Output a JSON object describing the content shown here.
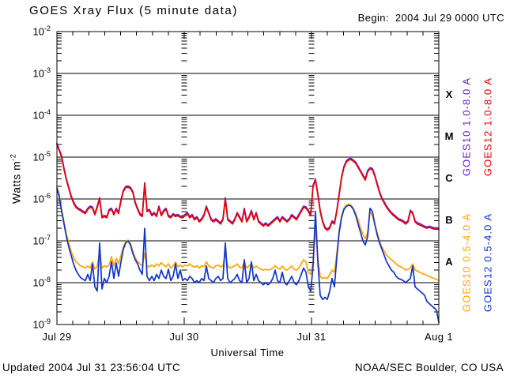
{
  "window": {
    "title": "GOES Xray Flux (5 minute data)",
    "begin_label": "Begin:  2004 Jul 29 0000 UTC"
  },
  "footer": {
    "updated": "Updated 2004 Jul 31 23:56:04 UTC",
    "source": "NOAA/SEC Boulder, CO USA"
  },
  "colors": {
    "background": "#ffffff",
    "frame": "#000000",
    "goes10_long": "#6a1fc8",
    "goes12_long": "#ea0000",
    "goes10_short": "#ffa500",
    "goes12_short": "#1133cc"
  },
  "chart_data": {
    "type": "line",
    "title": "GOES Xray Flux (5 minute data)",
    "xlabel": "Universal Time",
    "ylabel": {
      "base": "Watts m",
      "exponent": "-2"
    },
    "x_unit": "days since 2004 Jul 29 0000 UTC",
    "x_range_days": [
      0,
      3
    ],
    "x_tick_labels": [
      "Jul 29",
      "Jul 30",
      "Jul 31",
      "Aug 1"
    ],
    "x_minor_ticks_per_day": 8,
    "y_scale": "log",
    "y_log_range": [
      -2,
      -9
    ],
    "y_tick_exponents": [
      -2,
      -3,
      -4,
      -5,
      -6,
      -7,
      -8,
      -9
    ],
    "grid": "horizontal decade lines, log minor ticks at frame edges and day boundaries",
    "legend_position": "right margin, rotated",
    "flux_classes": [
      {
        "label": "X",
        "log10_center": -3.5
      },
      {
        "label": "M",
        "log10_center": -4.5
      },
      {
        "label": "C",
        "log10_center": -5.5
      },
      {
        "label": "B",
        "log10_center": -6.5
      },
      {
        "label": "A",
        "log10_center": -7.5
      }
    ],
    "series": [
      {
        "id": "goes10_long",
        "name": "GOES10 1.0-8.0 A",
        "color": "#6a1fc8",
        "derived_from": "goes12_long",
        "offset_log10": 0.03
      },
      {
        "id": "goes12_long",
        "name": "GOES12 1.0-8.0 A",
        "color": "#ea0000",
        "log10_flux": [
          -4.7,
          -4.85,
          -5.0,
          -5.3,
          -5.55,
          -5.75,
          -5.95,
          -6.1,
          -6.2,
          -6.25,
          -6.28,
          -6.32,
          -6.35,
          -6.25,
          -6.2,
          -6.22,
          -6.38,
          -6.2,
          -6.0,
          -6.45,
          -6.42,
          -6.45,
          -6.28,
          -6.25,
          -6.38,
          -6.25,
          -6.35,
          -6.05,
          -5.82,
          -5.73,
          -5.72,
          -5.75,
          -5.85,
          -6.1,
          -6.25,
          -6.38,
          -6.42,
          -5.64,
          -6.3,
          -6.28,
          -6.4,
          -6.35,
          -6.42,
          -6.2,
          -6.4,
          -6.3,
          -6.25,
          -6.42,
          -6.45,
          -6.38,
          -6.42,
          -6.4,
          -6.44,
          -6.45,
          -6.4,
          -6.35,
          -6.45,
          -6.4,
          -6.5,
          -6.45,
          -6.55,
          -6.5,
          -6.4,
          -6.2,
          -6.35,
          -6.5,
          -6.55,
          -6.5,
          -6.55,
          -6.6,
          -6.5,
          -6.0,
          -6.5,
          -6.55,
          -6.6,
          -6.5,
          -6.35,
          -6.45,
          -6.55,
          -6.25,
          -6.55,
          -6.45,
          -6.3,
          -6.5,
          -6.35,
          -6.55,
          -6.6,
          -6.65,
          -6.6,
          -6.65,
          -6.6,
          -6.55,
          -6.5,
          -6.45,
          -6.55,
          -6.45,
          -6.5,
          -6.55,
          -6.5,
          -6.4,
          -6.45,
          -6.5,
          -6.4,
          -6.3,
          -6.2,
          -6.22,
          -6.3,
          -6.4,
          -5.7,
          -5.55,
          -5.9,
          -6.3,
          -6.55,
          -6.7,
          -6.75,
          -6.7,
          -6.55,
          -6.6,
          -6.3,
          -5.9,
          -5.5,
          -5.25,
          -5.12,
          -5.07,
          -5.06,
          -5.1,
          -5.15,
          -5.25,
          -5.35,
          -5.45,
          -5.55,
          -5.35,
          -5.28,
          -5.3,
          -5.45,
          -5.65,
          -5.85,
          -6.0,
          -6.1,
          -6.2,
          -6.28,
          -6.35,
          -6.4,
          -6.45,
          -6.5,
          -6.52,
          -6.55,
          -6.6,
          -6.55,
          -6.3,
          -6.35,
          -6.55,
          -6.6,
          -6.62,
          -6.65,
          -6.68,
          -6.7,
          -6.68,
          -6.7,
          -6.72,
          -6.72,
          -6.73
        ]
      },
      {
        "id": "goes10_short",
        "name": "GOES10 0.5-4.0 A",
        "color": "#ffa500",
        "log10_flux": [
          -5.7,
          -5.9,
          -6.25,
          -6.55,
          -6.85,
          -7.05,
          -7.25,
          -7.4,
          -7.5,
          -7.55,
          -7.6,
          -7.62,
          -7.65,
          -7.6,
          -7.65,
          -7.5,
          -7.68,
          -7.6,
          -7.25,
          -7.65,
          -7.6,
          -7.62,
          -7.58,
          -7.38,
          -7.6,
          -7.42,
          -7.55,
          -7.35,
          -7.15,
          -7.02,
          -6.98,
          -7.06,
          -7.25,
          -7.4,
          -7.5,
          -7.55,
          -7.6,
          -7.3,
          -7.6,
          -7.62,
          -7.58,
          -7.62,
          -7.55,
          -7.6,
          -7.52,
          -7.58,
          -7.62,
          -7.55,
          -7.65,
          -7.6,
          -7.5,
          -7.62,
          -7.58,
          -7.62,
          -7.58,
          -7.6,
          -7.55,
          -7.6,
          -7.63,
          -7.6,
          -7.65,
          -7.6,
          -7.62,
          -7.5,
          -7.6,
          -7.63,
          -7.65,
          -7.6,
          -7.58,
          -7.62,
          -7.6,
          -7.3,
          -7.6,
          -7.65,
          -7.62,
          -7.6,
          -7.55,
          -7.63,
          -7.65,
          -7.5,
          -7.65,
          -7.6,
          -7.55,
          -7.65,
          -7.6,
          -7.65,
          -7.68,
          -7.7,
          -7.68,
          -7.7,
          -7.68,
          -7.65,
          -7.6,
          -7.65,
          -7.68,
          -7.6,
          -7.68,
          -7.7,
          -7.65,
          -7.6,
          -7.68,
          -7.7,
          -7.65,
          -7.55,
          -7.45,
          -7.5,
          -7.75,
          -7.8,
          -7.5,
          -6.7,
          -7.4,
          -7.85,
          -7.9,
          -7.88,
          -7.9,
          -7.8,
          -7.7,
          -7.75,
          -7.3,
          -6.75,
          -6.4,
          -6.22,
          -6.15,
          -6.12,
          -6.15,
          -6.22,
          -6.35,
          -6.5,
          -6.7,
          -6.85,
          -6.95,
          -6.8,
          -6.3,
          -6.4,
          -6.6,
          -6.8,
          -7.0,
          -7.15,
          -7.25,
          -7.35,
          -7.4,
          -7.45,
          -7.5,
          -7.55,
          -7.6,
          -7.62,
          -7.65,
          -7.7,
          -7.68,
          -7.65,
          -7.55,
          -7.7,
          -7.72,
          -7.75,
          -7.78,
          -7.8,
          -7.82,
          -7.85,
          -7.88,
          -7.9,
          -7.92,
          -7.95
        ]
      },
      {
        "id": "goes12_short",
        "name": "GOES12 0.5-4.0 A",
        "color": "#1133cc",
        "log10_flux": [
          -5.75,
          -5.95,
          -6.3,
          -6.6,
          -6.9,
          -7.15,
          -7.35,
          -7.55,
          -7.7,
          -7.8,
          -7.88,
          -7.92,
          -7.95,
          -7.8,
          -7.95,
          -7.55,
          -8.1,
          -8.2,
          -7.05,
          -8.15,
          -7.9,
          -8.0,
          -7.85,
          -7.5,
          -7.9,
          -7.53,
          -7.85,
          -7.5,
          -7.2,
          -7.05,
          -7.0,
          -7.1,
          -7.3,
          -7.45,
          -7.55,
          -7.7,
          -7.8,
          -6.7,
          -7.85,
          -7.95,
          -7.85,
          -7.95,
          -7.8,
          -7.9,
          -7.7,
          -7.85,
          -7.9,
          -7.68,
          -7.95,
          -7.85,
          -7.55,
          -7.9,
          -7.7,
          -7.95,
          -7.9,
          -7.95,
          -7.85,
          -7.9,
          -8.0,
          -7.95,
          -8.0,
          -7.9,
          -7.95,
          -7.6,
          -7.9,
          -7.95,
          -8.0,
          -7.9,
          -7.85,
          -7.95,
          -7.9,
          -7.05,
          -7.9,
          -8.0,
          -7.95,
          -7.9,
          -7.8,
          -7.95,
          -8.0,
          -7.45,
          -8.0,
          -7.9,
          -7.5,
          -7.95,
          -7.8,
          -7.95,
          -8.0,
          -8.05,
          -8.0,
          -8.05,
          -8.0,
          -7.9,
          -7.7,
          -7.95,
          -8.0,
          -7.75,
          -8.0,
          -8.05,
          -7.95,
          -7.85,
          -8.0,
          -8.05,
          -7.95,
          -7.8,
          -7.65,
          -7.75,
          -8.1,
          -8.2,
          -7.6,
          -6.3,
          -7.5,
          -8.3,
          -8.4,
          -8.35,
          -8.4,
          -8.2,
          -7.9,
          -8.1,
          -7.4,
          -6.8,
          -6.45,
          -6.25,
          -6.18,
          -6.15,
          -6.17,
          -6.25,
          -6.4,
          -6.6,
          -6.8,
          -7.0,
          -7.1,
          -6.9,
          -6.22,
          -6.3,
          -6.6,
          -6.85,
          -7.05,
          -7.2,
          -7.35,
          -7.5,
          -7.6,
          -7.7,
          -7.75,
          -7.85,
          -7.9,
          -7.92,
          -7.95,
          -8.0,
          -7.95,
          -7.9,
          -7.6,
          -8.1,
          -8.15,
          -8.2,
          -8.25,
          -8.3,
          -8.45,
          -8.5,
          -8.55,
          -8.6,
          -8.65,
          -8.95
        ]
      }
    ]
  },
  "legend": [
    {
      "text": "GOES10 1.0-8.0 A",
      "color": "#6a1fc8",
      "col": 0,
      "row": 0
    },
    {
      "text": "GOES12 1.0-8.0 A",
      "color": "#ea0000",
      "col": 1,
      "row": 0
    },
    {
      "text": "GOES10 0.5-4.0 A",
      "color": "#ffa500",
      "col": 0,
      "row": 1
    },
    {
      "text": "GOES12 0.5-4.0 A",
      "color": "#1133cc",
      "col": 1,
      "row": 1
    }
  ]
}
